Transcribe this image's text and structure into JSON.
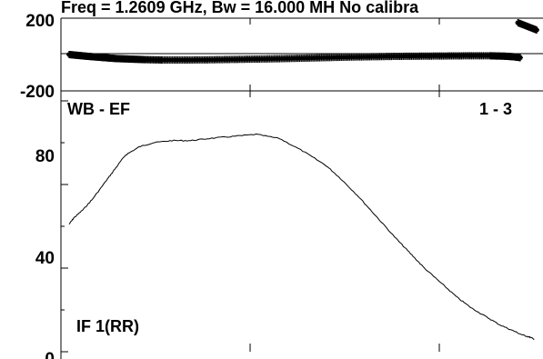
{
  "header": {
    "text": "Freq = 1.2609 GHz, Bw = 16.000 MH   No calibra"
  },
  "chart_data": [
    {
      "type": "scatter",
      "ylim": [
        -200,
        200
      ],
      "ytick_labels": [
        "200",
        "-200"
      ],
      "series": [
        {
          "x": [
            0.0,
            0.02,
            0.04,
            0.06,
            0.08,
            0.1,
            0.13,
            0.16,
            0.2,
            0.25,
            0.3,
            0.35,
            0.4,
            0.45,
            0.5,
            0.55,
            0.6,
            0.65,
            0.7,
            0.75,
            0.8,
            0.85,
            0.9,
            0.93,
            0.95,
            0.965
          ],
          "y": [
            0,
            -5,
            -10,
            -14,
            -18,
            -22,
            -25,
            -28,
            -30,
            -30,
            -29,
            -27,
            -25,
            -23,
            -20,
            -17,
            -14,
            -12,
            -10,
            -9,
            -8,
            -7,
            -7,
            -9,
            -12,
            -17
          ]
        },
        {
          "x": [
            0.96,
            0.97,
            0.98,
            0.99,
            1.0
          ],
          "y": [
            175,
            165,
            155,
            145,
            135
          ]
        }
      ]
    },
    {
      "type": "line",
      "ylim": [
        0,
        120
      ],
      "yticks": [
        0,
        40,
        80
      ],
      "corner_labels": {
        "top_left": "WB - EF",
        "top_right": "1 - 3",
        "bottom_left": "IF 1(RR)"
      },
      "series": [
        {
          "x": [
            0.0,
            0.01,
            0.03,
            0.05,
            0.08,
            0.1,
            0.12,
            0.15,
            0.18,
            0.22,
            0.26,
            0.3,
            0.35,
            0.4,
            0.45,
            0.5,
            0.55,
            0.58,
            0.62,
            0.66,
            0.7,
            0.73,
            0.76,
            0.8,
            0.83,
            0.86,
            0.89,
            0.92,
            0.95,
            0.97,
            0.985,
            0.995
          ],
          "y": [
            61,
            64,
            68,
            73,
            82,
            88,
            94,
            98,
            100,
            101,
            101,
            102,
            103,
            104,
            102,
            96,
            89,
            83,
            74,
            64,
            54,
            47,
            40,
            32,
            26,
            21,
            17,
            13,
            10,
            8,
            7,
            6
          ]
        }
      ]
    }
  ]
}
